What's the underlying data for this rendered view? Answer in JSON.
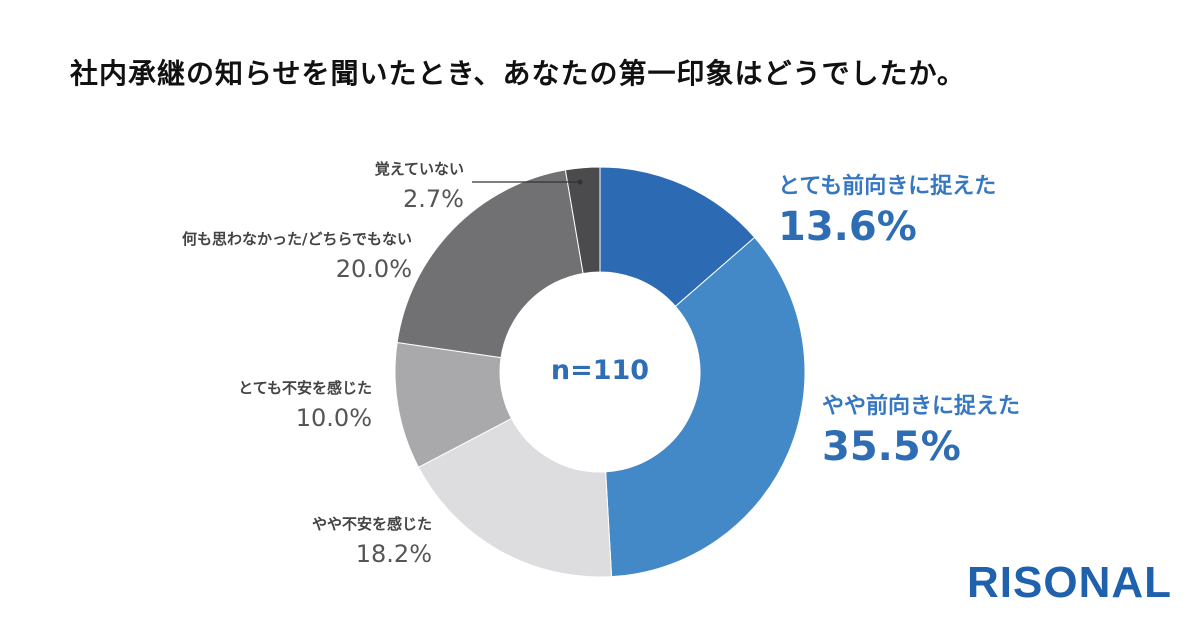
{
  "title": "社内承継の知らせを聞いたとき、あなたの第一印象はどうでしたか。",
  "brand": "RISONAL",
  "chart_data": {
    "type": "pie",
    "subtype": "donut",
    "center_label": "n=110",
    "categories": [
      "とても前向きに捉えた",
      "やや前向きに捉えた",
      "やや不安を感じた",
      "とても不安を感じた",
      "何も思わなかった/どちらでもない",
      "覚えていない"
    ],
    "values": [
      13.6,
      35.5,
      18.2,
      10.0,
      20.0,
      2.7
    ],
    "value_labels": [
      "13.6%",
      "35.5%",
      "18.2%",
      "10.0%",
      "20.0%",
      "2.7%"
    ],
    "colors": [
      "#2c6bb3",
      "#4389c8",
      "#dddcdf",
      "#a9a8ab",
      "#717072",
      "#4b4a4c"
    ]
  }
}
